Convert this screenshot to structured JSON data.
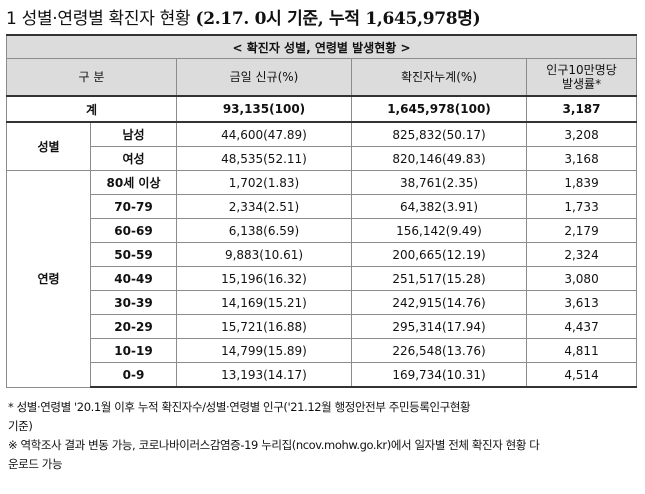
{
  "title": {
    "prefix": "1 성별·연령별 확진자 현황",
    "suffix": "(2.17. 0시 기준, 누적 1,645,978명)"
  },
  "table": {
    "caption": "< 확진자 성별, 연령별 발생현황 >",
    "headers": {
      "category": "구 분",
      "new_cases": "금일 신규(%)",
      "cumulative": "확진자누계(%)",
      "rate_line1": "인구10만명당",
      "rate_line2": "발생률*"
    },
    "total": {
      "label": "계",
      "new": "93,135(100)",
      "cum": "1,645,978(100)",
      "rate": "3,187"
    },
    "gender_label": "성별",
    "gender_rows": [
      {
        "label": "남성",
        "new": "44,600(47.89)",
        "cum": "825,832(50.17)",
        "rate": "3,208"
      },
      {
        "label": "여성",
        "new": "48,535(52.11)",
        "cum": "820,146(49.83)",
        "rate": "3,168"
      }
    ],
    "age_label": "연령",
    "age_rows": [
      {
        "label": "80세 이상",
        "new": "1,702(1.83)",
        "cum": "38,761(2.35)",
        "rate": "1,839"
      },
      {
        "label": "70-79",
        "new": "2,334(2.51)",
        "cum": "64,382(3.91)",
        "rate": "1,733"
      },
      {
        "label": "60-69",
        "new": "6,138(6.59)",
        "cum": "156,142(9.49)",
        "rate": "2,179"
      },
      {
        "label": "50-59",
        "new": "9,883(10.61)",
        "cum": "200,665(12.19)",
        "rate": "2,324"
      },
      {
        "label": "40-49",
        "new": "15,196(16.32)",
        "cum": "251,517(15.28)",
        "rate": "3,080"
      },
      {
        "label": "30-39",
        "new": "14,169(15.21)",
        "cum": "242,915(14.76)",
        "rate": "3,613"
      },
      {
        "label": "20-29",
        "new": "15,721(16.88)",
        "cum": "295,314(17.94)",
        "rate": "4,437"
      },
      {
        "label": "10-19",
        "new": "14,799(15.89)",
        "cum": "226,548(13.76)",
        "rate": "4,811"
      },
      {
        "label": "0-9",
        "new": "13,193(14.17)",
        "cum": "169,734(10.31)",
        "rate": "4,514"
      }
    ]
  },
  "notes": [
    "* 성별·연령별 '20.1월 이후 누적 확진자수/성별·연령별 인구('21.12월 행정안전부 주민등록인구현황",
    "기준)",
    "※ 역학조사 결과 변동 가능, 코로나바이러스감염증-19 누리집(ncov.mohw.go.kr)에서 일자별 전체 확진자 현황 다",
    "운로드 가능"
  ]
}
